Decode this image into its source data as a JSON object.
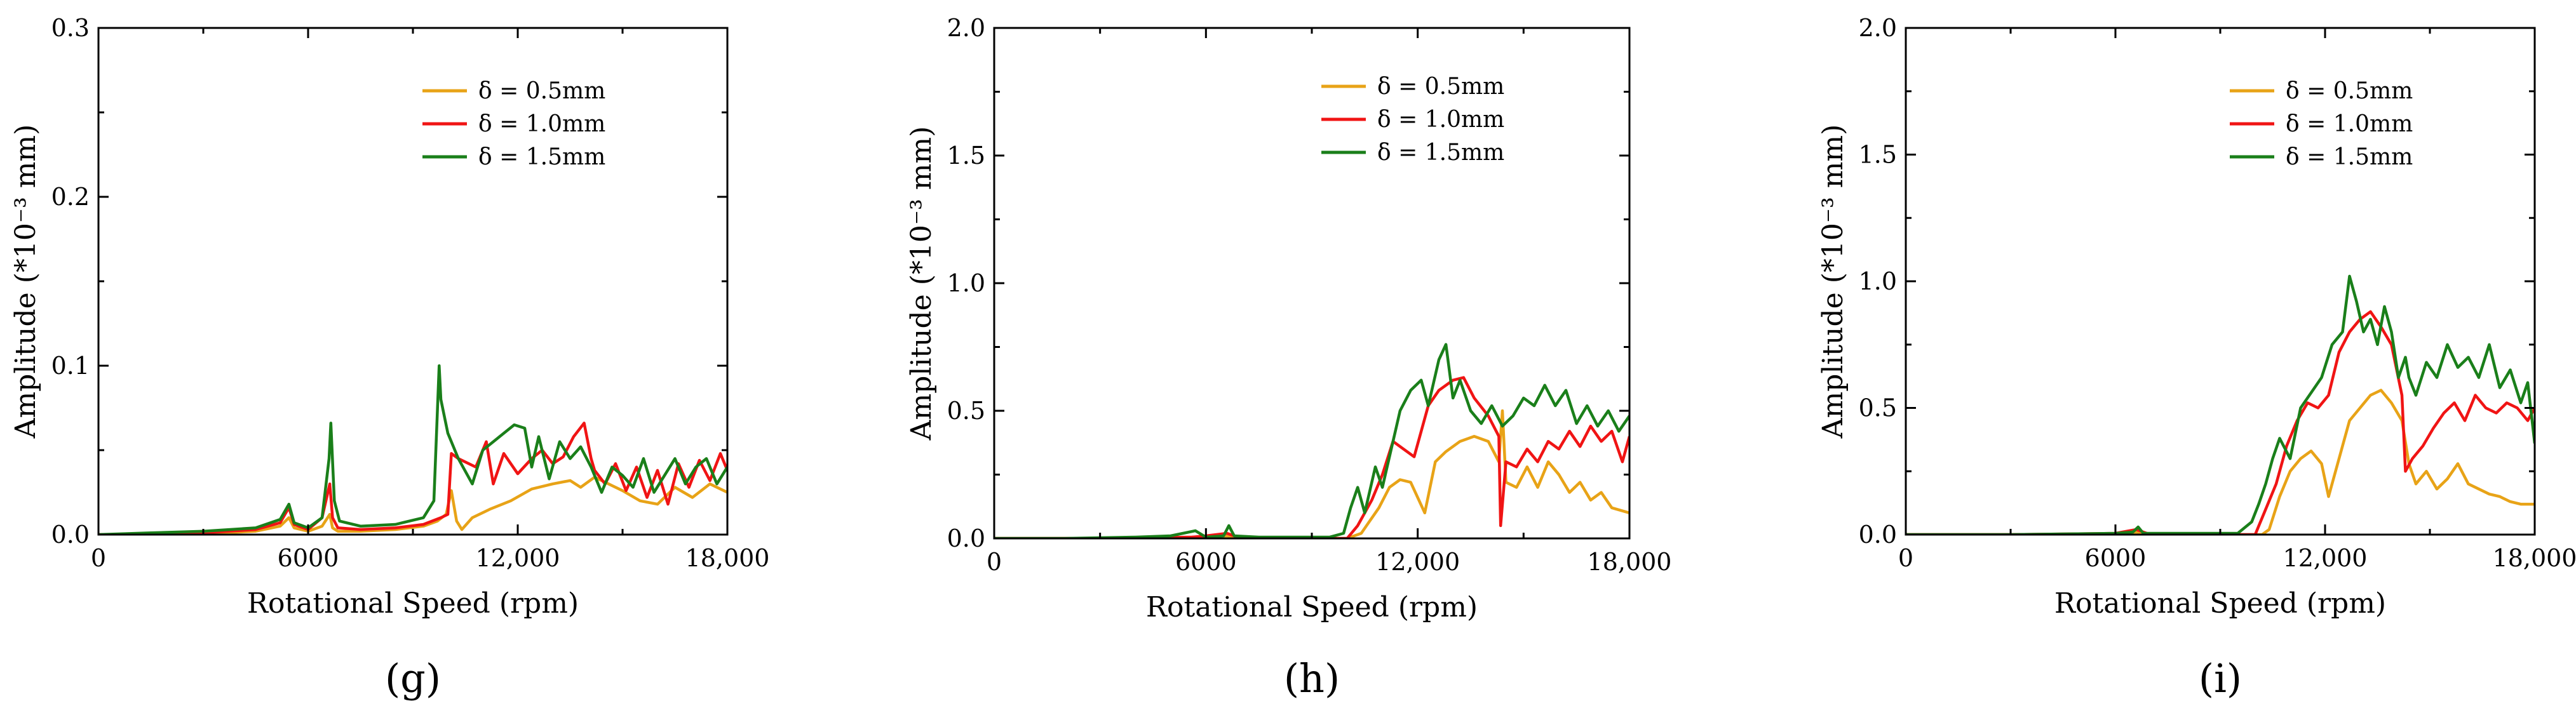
{
  "colors": {
    "d05": "#E8A317",
    "d10": "#F01414",
    "d15": "#1A7F1A"
  },
  "chart_data": [
    {
      "type": "line",
      "panel": "(g)",
      "xlabel": "Rotational Speed (rpm)",
      "ylabel": "Amplitude (*10⁻³ mm)",
      "xlim": [
        0,
        18000
      ],
      "ylim": [
        0,
        0.3
      ],
      "xticks": [
        0,
        6000,
        12000,
        18000
      ],
      "xtick_labels": [
        "0",
        "6000",
        "12,000",
        "18,000"
      ],
      "yticks": [
        0,
        0.1,
        0.2,
        0.3
      ],
      "ytick_labels": [
        "0.0",
        "0.1",
        "0.2",
        "0.3"
      ],
      "legend_position": "top-right",
      "series": [
        {
          "name": "δ = 0.5mm",
          "color_key": "d05",
          "x": [
            0,
            1500,
            3000,
            4500,
            5200,
            5450,
            5600,
            6000,
            6400,
            6620,
            6700,
            6850,
            7500,
            8500,
            9300,
            9700,
            9950,
            10100,
            10250,
            10400,
            10700,
            11200,
            11800,
            12400,
            13000,
            13500,
            13800,
            14200,
            14600,
            15000,
            15500,
            16000,
            16500,
            17000,
            17500,
            18000
          ],
          "y": [
            0,
            0,
            0.0005,
            0.002,
            0.005,
            0.01,
            0.004,
            0.002,
            0.005,
            0.012,
            0.004,
            0.002,
            0.002,
            0.003,
            0.005,
            0.008,
            0.012,
            0.026,
            0.008,
            0.003,
            0.01,
            0.015,
            0.02,
            0.027,
            0.03,
            0.032,
            0.028,
            0.034,
            0.03,
            0.026,
            0.02,
            0.018,
            0.028,
            0.022,
            0.03,
            0.025
          ]
        },
        {
          "name": "δ = 1.0mm",
          "color_key": "d10",
          "x": [
            0,
            1500,
            3000,
            4500,
            5200,
            5450,
            5600,
            6000,
            6400,
            6620,
            6700,
            6850,
            7500,
            8500,
            9300,
            9800,
            10000,
            10100,
            10300,
            10800,
            11100,
            11300,
            11600,
            12000,
            12400,
            12700,
            13000,
            13300,
            13600,
            13900,
            14100,
            14200,
            14500,
            14800,
            15100,
            15400,
            15700,
            16000,
            16300,
            16600,
            16900,
            17200,
            17500,
            17800,
            18000
          ],
          "y": [
            0,
            0,
            0.001,
            0.003,
            0.007,
            0.016,
            0.006,
            0.003,
            0.01,
            0.03,
            0.01,
            0.004,
            0.003,
            0.004,
            0.006,
            0.01,
            0.012,
            0.048,
            0.045,
            0.04,
            0.055,
            0.03,
            0.048,
            0.036,
            0.045,
            0.05,
            0.042,
            0.046,
            0.058,
            0.066,
            0.045,
            0.038,
            0.03,
            0.042,
            0.026,
            0.04,
            0.022,
            0.038,
            0.018,
            0.042,
            0.028,
            0.044,
            0.032,
            0.048,
            0.038
          ]
        },
        {
          "name": "δ = 1.5mm",
          "color_key": "d15",
          "x": [
            0,
            1500,
            3000,
            4500,
            5200,
            5450,
            5600,
            6000,
            6400,
            6600,
            6650,
            6750,
            6900,
            7500,
            8500,
            9300,
            9600,
            9750,
            9800,
            10000,
            10300,
            10700,
            11000,
            11300,
            11600,
            11900,
            12200,
            12400,
            12600,
            12900,
            13200,
            13500,
            13800,
            14100,
            14400,
            14700,
            15000,
            15300,
            15600,
            15900,
            16200,
            16500,
            16800,
            17100,
            17400,
            17700,
            18000
          ],
          "y": [
            0,
            0.001,
            0.002,
            0.004,
            0.009,
            0.018,
            0.007,
            0.004,
            0.01,
            0.045,
            0.066,
            0.02,
            0.008,
            0.005,
            0.006,
            0.01,
            0.02,
            0.1,
            0.08,
            0.06,
            0.045,
            0.03,
            0.05,
            0.055,
            0.06,
            0.065,
            0.063,
            0.04,
            0.058,
            0.033,
            0.055,
            0.045,
            0.052,
            0.04,
            0.025,
            0.04,
            0.035,
            0.028,
            0.045,
            0.025,
            0.035,
            0.045,
            0.03,
            0.04,
            0.045,
            0.03,
            0.04
          ]
        }
      ]
    },
    {
      "type": "line",
      "panel": "(h)",
      "xlabel": "Rotational Speed (rpm)",
      "ylabel": "Amplitude (*10⁻³ mm)",
      "xlim": [
        0,
        18000
      ],
      "ylim": [
        0,
        2.0
      ],
      "xticks": [
        0,
        6000,
        12000,
        18000
      ],
      "xtick_labels": [
        "0",
        "6000",
        "12,000",
        "18,000"
      ],
      "yticks": [
        0,
        0.5,
        1.0,
        1.5,
        2.0
      ],
      "ytick_labels": [
        "0.0",
        "0.5",
        "1.0",
        "1.5",
        "2.0"
      ],
      "legend_position": "top-right",
      "series": [
        {
          "name": "δ = 0.5mm",
          "color_key": "d05",
          "x": [
            0,
            3000,
            5600,
            6000,
            6600,
            7000,
            9500,
            10000,
            10400,
            10600,
            10900,
            11200,
            11500,
            11800,
            12200,
            12500,
            12800,
            13200,
            13600,
            14000,
            14300,
            14400,
            14500,
            14800,
            15100,
            15400,
            15700,
            16000,
            16300,
            16600,
            16900,
            17200,
            17500,
            18000
          ],
          "y": [
            0,
            0,
            0.005,
            0.005,
            0.01,
            0,
            0,
            0,
            0.02,
            0.06,
            0.12,
            0.2,
            0.23,
            0.22,
            0.1,
            0.3,
            0.34,
            0.38,
            0.4,
            0.38,
            0.3,
            0.5,
            0.22,
            0.2,
            0.28,
            0.2,
            0.3,
            0.25,
            0.18,
            0.22,
            0.15,
            0.18,
            0.12,
            0.1
          ]
        },
        {
          "name": "δ = 1.0mm",
          "color_key": "d10",
          "x": [
            0,
            3000,
            5600,
            6000,
            6600,
            7000,
            9500,
            10000,
            10300,
            10700,
            11000,
            11300,
            11600,
            11900,
            12300,
            12600,
            13000,
            13300,
            13600,
            14000,
            14300,
            14350,
            14500,
            14800,
            15100,
            15400,
            15700,
            16000,
            16300,
            16600,
            16900,
            17200,
            17500,
            17800,
            18000
          ],
          "y": [
            0,
            0,
            0.005,
            0.01,
            0.02,
            0,
            0,
            0,
            0.05,
            0.15,
            0.25,
            0.38,
            0.35,
            0.32,
            0.52,
            0.58,
            0.62,
            0.63,
            0.55,
            0.48,
            0.4,
            0.05,
            0.3,
            0.28,
            0.35,
            0.3,
            0.38,
            0.35,
            0.42,
            0.36,
            0.44,
            0.38,
            0.42,
            0.3,
            0.4
          ]
        },
        {
          "name": "δ = 1.5mm",
          "color_key": "d15",
          "x": [
            0,
            2000,
            4000,
            5000,
            5700,
            6000,
            6500,
            6650,
            6800,
            7500,
            9500,
            9900,
            10100,
            10300,
            10500,
            10800,
            11000,
            11300,
            11500,
            11800,
            12100,
            12300,
            12600,
            12800,
            13000,
            13200,
            13500,
            13800,
            14100,
            14400,
            14700,
            15000,
            15300,
            15600,
            15900,
            16200,
            16500,
            16800,
            17100,
            17400,
            17700,
            18000
          ],
          "y": [
            0,
            0,
            0.005,
            0.01,
            0.03,
            0.005,
            0.01,
            0.05,
            0.01,
            0.005,
            0.005,
            0.02,
            0.12,
            0.2,
            0.1,
            0.28,
            0.2,
            0.38,
            0.5,
            0.58,
            0.62,
            0.52,
            0.7,
            0.76,
            0.55,
            0.62,
            0.5,
            0.45,
            0.52,
            0.44,
            0.48,
            0.55,
            0.52,
            0.6,
            0.52,
            0.58,
            0.45,
            0.52,
            0.44,
            0.5,
            0.42,
            0.48
          ]
        }
      ]
    },
    {
      "type": "line",
      "panel": "(i)",
      "xlabel": "Rotational Speed (rpm)",
      "ylabel": "Amplitude (*10⁻³ mm)",
      "xlim": [
        0,
        18000
      ],
      "ylim": [
        0,
        2.0
      ],
      "xticks": [
        0,
        6000,
        12000,
        18000
      ],
      "xtick_labels": [
        "0",
        "6000",
        "12,000",
        "18,000"
      ],
      "yticks": [
        0,
        0.5,
        1.0,
        1.5,
        2.0
      ],
      "ytick_labels": [
        "0.0",
        "0.5",
        "1.0",
        "1.5",
        "2.0"
      ],
      "legend_position": "top-right",
      "series": [
        {
          "name": "δ = 0.5mm",
          "color_key": "d05",
          "x": [
            0,
            3000,
            6000,
            6600,
            7000,
            9800,
            10200,
            10400,
            10700,
            11000,
            11300,
            11600,
            11900,
            12100,
            12400,
            12700,
            13000,
            13300,
            13600,
            13900,
            14200,
            14400,
            14600,
            14900,
            15200,
            15500,
            15800,
            16100,
            16400,
            16700,
            17000,
            17300,
            17600,
            18000
          ],
          "y": [
            0,
            0,
            0,
            0.01,
            0,
            0,
            0,
            0.02,
            0.15,
            0.25,
            0.3,
            0.33,
            0.28,
            0.15,
            0.3,
            0.45,
            0.5,
            0.55,
            0.57,
            0.52,
            0.45,
            0.28,
            0.2,
            0.25,
            0.18,
            0.22,
            0.28,
            0.2,
            0.18,
            0.16,
            0.15,
            0.13,
            0.12,
            0.12
          ]
        },
        {
          "name": "δ = 1.0mm",
          "color_key": "d10",
          "x": [
            0,
            3000,
            6000,
            6600,
            7000,
            9600,
            10000,
            10300,
            10600,
            10900,
            11200,
            11500,
            11800,
            12100,
            12400,
            12700,
            13000,
            13300,
            13600,
            13900,
            14200,
            14300,
            14500,
            14800,
            15100,
            15400,
            15700,
            16000,
            16300,
            16600,
            16900,
            17200,
            17500,
            17800,
            18000
          ],
          "y": [
            0,
            0,
            0.005,
            0.02,
            0,
            0,
            0,
            0.1,
            0.2,
            0.35,
            0.45,
            0.52,
            0.5,
            0.55,
            0.72,
            0.8,
            0.85,
            0.88,
            0.82,
            0.75,
            0.55,
            0.25,
            0.3,
            0.35,
            0.42,
            0.48,
            0.52,
            0.45,
            0.55,
            0.5,
            0.48,
            0.52,
            0.5,
            0.45,
            0.5
          ]
        },
        {
          "name": "δ = 1.5mm",
          "color_key": "d15",
          "x": [
            0,
            3000,
            6000,
            6500,
            6650,
            6800,
            9500,
            9900,
            10100,
            10300,
            10500,
            10700,
            11000,
            11300,
            11600,
            11900,
            12200,
            12500,
            12700,
            12900,
            13100,
            13300,
            13500,
            13700,
            13900,
            14100,
            14300,
            14400,
            14600,
            14900,
            15200,
            15500,
            15800,
            16100,
            16400,
            16700,
            17000,
            17300,
            17600,
            17800,
            18000
          ],
          "y": [
            0,
            0,
            0.005,
            0.01,
            0.03,
            0.005,
            0.005,
            0.05,
            0.12,
            0.2,
            0.3,
            0.38,
            0.3,
            0.5,
            0.56,
            0.62,
            0.75,
            0.8,
            1.02,
            0.92,
            0.8,
            0.85,
            0.75,
            0.9,
            0.8,
            0.62,
            0.7,
            0.62,
            0.55,
            0.68,
            0.62,
            0.75,
            0.66,
            0.7,
            0.62,
            0.75,
            0.58,
            0.65,
            0.52,
            0.6,
            0.36
          ]
        }
      ]
    }
  ]
}
